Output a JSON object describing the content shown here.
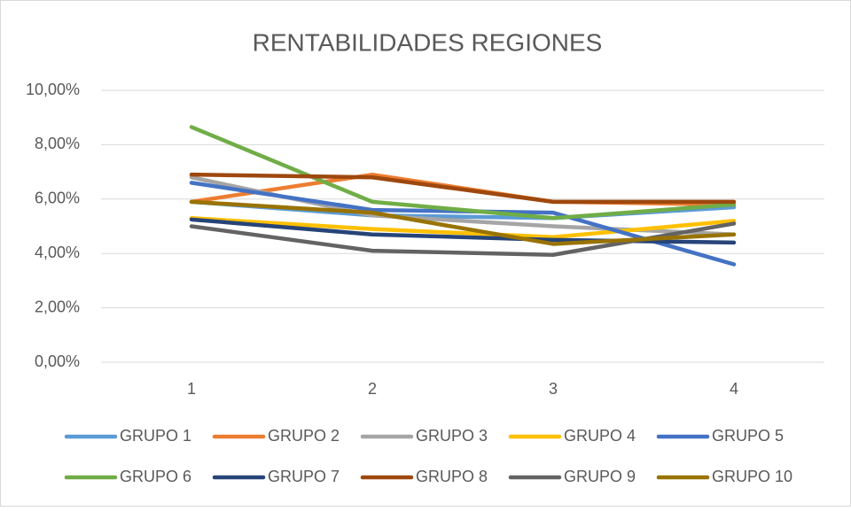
{
  "chart_data": {
    "type": "line",
    "title": "RENTABILIDADES REGIONES",
    "categories": [
      "1",
      "2",
      "3",
      "4"
    ],
    "ylim": [
      0,
      10
    ],
    "yticks": [
      {
        "value": 0,
        "label": "0,00%"
      },
      {
        "value": 2,
        "label": "2,00%"
      },
      {
        "value": 4,
        "label": "4,00%"
      },
      {
        "value": 6,
        "label": "6,00%"
      },
      {
        "value": 8,
        "label": "8,00%"
      },
      {
        "value": 10,
        "label": "10,00%"
      }
    ],
    "grid": true,
    "legend": "bottom",
    "series": [
      {
        "name": "GRUPO 1",
        "color": "#5b9bd5",
        "values": [
          5.9,
          5.4,
          5.3,
          5.7
        ]
      },
      {
        "name": "GRUPO 2",
        "color": "#ed7d31",
        "values": [
          5.9,
          6.9,
          5.9,
          5.8
        ]
      },
      {
        "name": "GRUPO 3",
        "color": "#a5a5a5",
        "values": [
          6.8,
          5.4,
          5.0,
          4.7
        ]
      },
      {
        "name": "GRUPO 4",
        "color": "#ffc000",
        "values": [
          5.3,
          4.9,
          4.6,
          5.2
        ]
      },
      {
        "name": "GRUPO 5",
        "color": "#4472c4",
        "values": [
          6.6,
          5.6,
          5.5,
          3.6
        ]
      },
      {
        "name": "GRUPO 6",
        "color": "#70ad47",
        "values": [
          8.65,
          5.9,
          5.3,
          5.8
        ]
      },
      {
        "name": "GRUPO 7",
        "color": "#264478",
        "values": [
          5.25,
          4.7,
          4.5,
          4.4
        ]
      },
      {
        "name": "GRUPO 8",
        "color": "#9e480e",
        "values": [
          6.9,
          6.8,
          5.9,
          5.9
        ]
      },
      {
        "name": "GRUPO 9",
        "color": "#636363",
        "values": [
          5.0,
          4.1,
          3.95,
          5.1
        ]
      },
      {
        "name": "GRUPO 10",
        "color": "#997300",
        "values": [
          5.9,
          5.5,
          4.35,
          4.7
        ]
      }
    ]
  }
}
